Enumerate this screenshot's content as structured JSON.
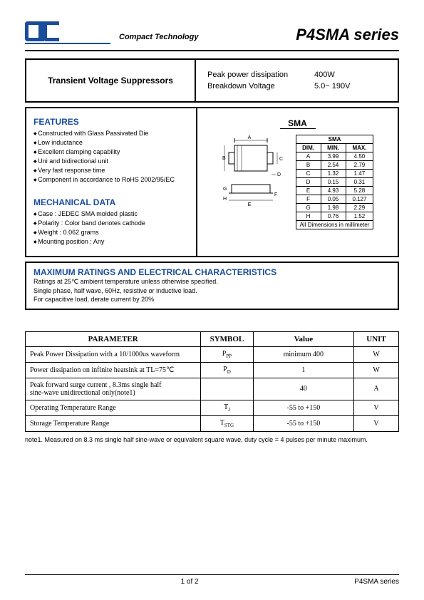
{
  "header": {
    "company": "Compact Technology",
    "series": "P4SMA series"
  },
  "title_box": {
    "title": "Transient Voltage Suppressors",
    "spec1_label": "Peak power dissipation",
    "spec1_value": "400W",
    "spec2_label": "Breakdown  Voltage",
    "spec2_value": "5.0~  190V"
  },
  "features": {
    "heading": "FEATURES",
    "items": [
      "Constructed with Glass Passivated Die",
      "Low inductance",
      "Excellent clamping capability",
      "Uni and bidirectional unit",
      "Very fast response time",
      "Component in accordance to RoHS 2002/95/EC"
    ]
  },
  "mechanical": {
    "heading": "MECHANICAL DATA",
    "items": [
      "Case : JEDEC SMA molded plastic",
      "Polarity : Color band denotes cathode",
      "Weight :  0.062 grams",
      "Mounting position : Any"
    ]
  },
  "package": {
    "label": "SMA",
    "dim_header": [
      "DIM.",
      "MIN.",
      "MAX."
    ],
    "dim_title": "SMA",
    "rows": [
      [
        "A",
        "3.99",
        "4.50"
      ],
      [
        "B",
        "2.54",
        "2.79"
      ],
      [
        "C",
        "1.32",
        "1.47"
      ],
      [
        "D",
        "0.15",
        "0.31"
      ],
      [
        "E",
        "4.93",
        "5.28"
      ],
      [
        "F",
        "0.05",
        "0.127"
      ],
      [
        "G",
        "1.98",
        "2.29"
      ],
      [
        "H",
        "0.76",
        "1.52"
      ]
    ],
    "note": "All Dimensions in millimeter"
  },
  "max_ratings": {
    "heading": "MAXIMUM RATINGS AND ELECTRICAL CHARACTERISTICS",
    "line1": "Ratings at 25℃ ambient temperature unless otherwise specified.",
    "line2": "Single phase, half wave, 60Hz, resistive or inductive load.",
    "line3": "For capacitive load, derate current by 20%"
  },
  "param_table": {
    "headers": [
      "PARAMETER",
      "SYMBOL",
      "Value",
      "UNIT"
    ],
    "rows": [
      {
        "param": "Peak Power Dissipation with a 10/1000us waveform",
        "symbol": "P",
        "sub": "PP",
        "value": "minimum 400",
        "unit": "W"
      },
      {
        "param": "Power dissipation on infinite heatsink at TL=75℃",
        "symbol": "P",
        "sub": "D",
        "value": "1",
        "unit": "W"
      },
      {
        "param_line1": "Peak forward surge current , 8.3ms single half",
        "param_line2": "sine-wave unidirectional only(note1)",
        "symbol": "",
        "sub": "",
        "value": "40",
        "unit": "A"
      },
      {
        "param": "Operating Temperature Range",
        "symbol": "T",
        "sub": "J",
        "value": "-55 to +150",
        "unit": "V"
      },
      {
        "param": "Storage Temperature Range",
        "symbol": "T",
        "sub": "STG",
        "value": "-55 to +150",
        "unit": "V"
      }
    ]
  },
  "note1": "note1. Measured on 8.3 ms single half sine-wave or equivalent square wave, duty cycle = 4 pulses per minute maximum.",
  "footer": {
    "page": "1 of 2",
    "series": "P4SMA series"
  },
  "colors": {
    "brand_blue": "#1a4c9c",
    "black": "#000000"
  }
}
